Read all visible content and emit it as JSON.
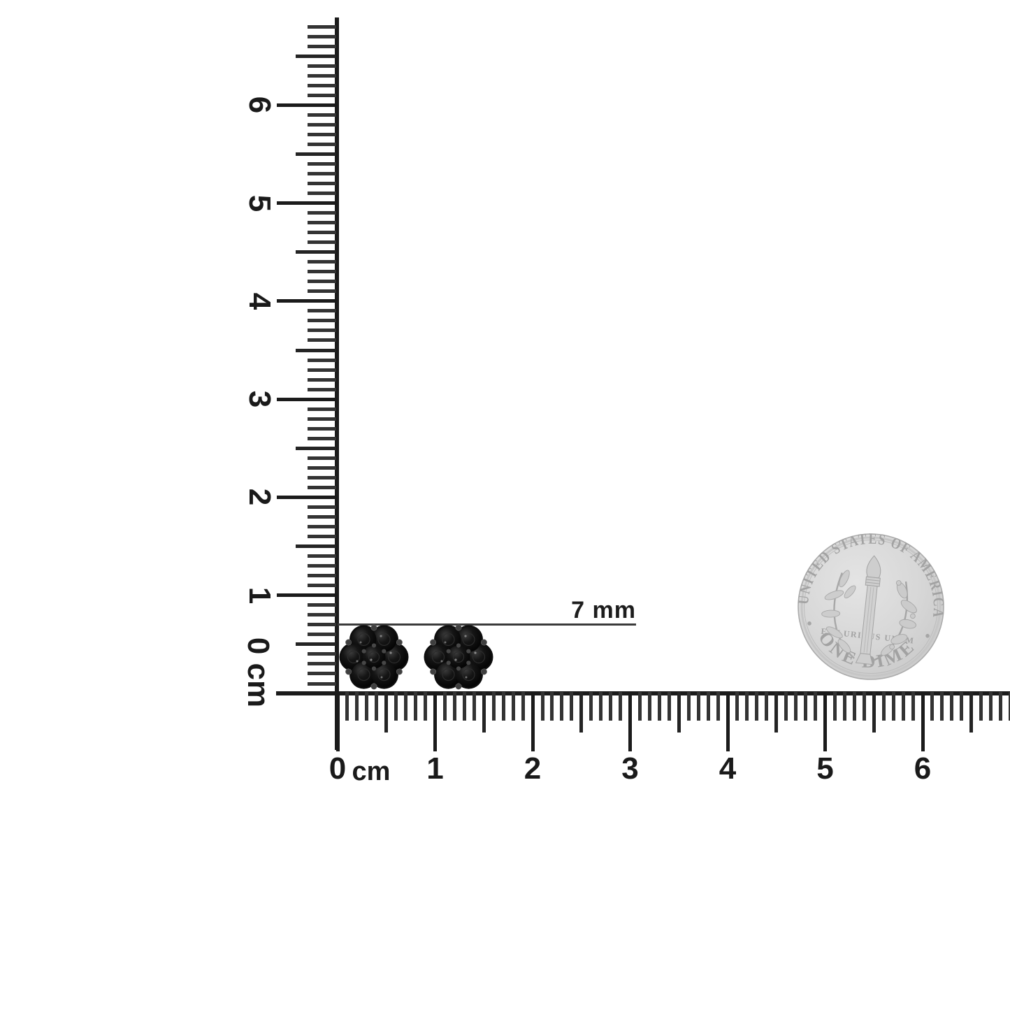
{
  "canvas": {
    "background": "#ffffff"
  },
  "dimension_annotation": {
    "label": "7 mm"
  },
  "rulers": {
    "vertical": {
      "zero_label": "0 cm",
      "cm_labels": [
        "1",
        "2",
        "3",
        "4",
        "5",
        "6"
      ]
    },
    "horizontal": {
      "zero_label": "0",
      "unit_label": "cm",
      "cm_labels": [
        "1",
        "2",
        "3",
        "4",
        "5",
        "6"
      ]
    }
  },
  "earrings": {
    "pair_count": 2,
    "stones_per_cluster": 7,
    "stone_color": "#060606",
    "shape": "flower cluster"
  },
  "coin": {
    "top_text": "UNITED STATES OF AMERICA",
    "bottom_text": "ONE DIME",
    "motto_text": "E PLURIBUS UNUM",
    "base_color": "#d6d6d6"
  }
}
